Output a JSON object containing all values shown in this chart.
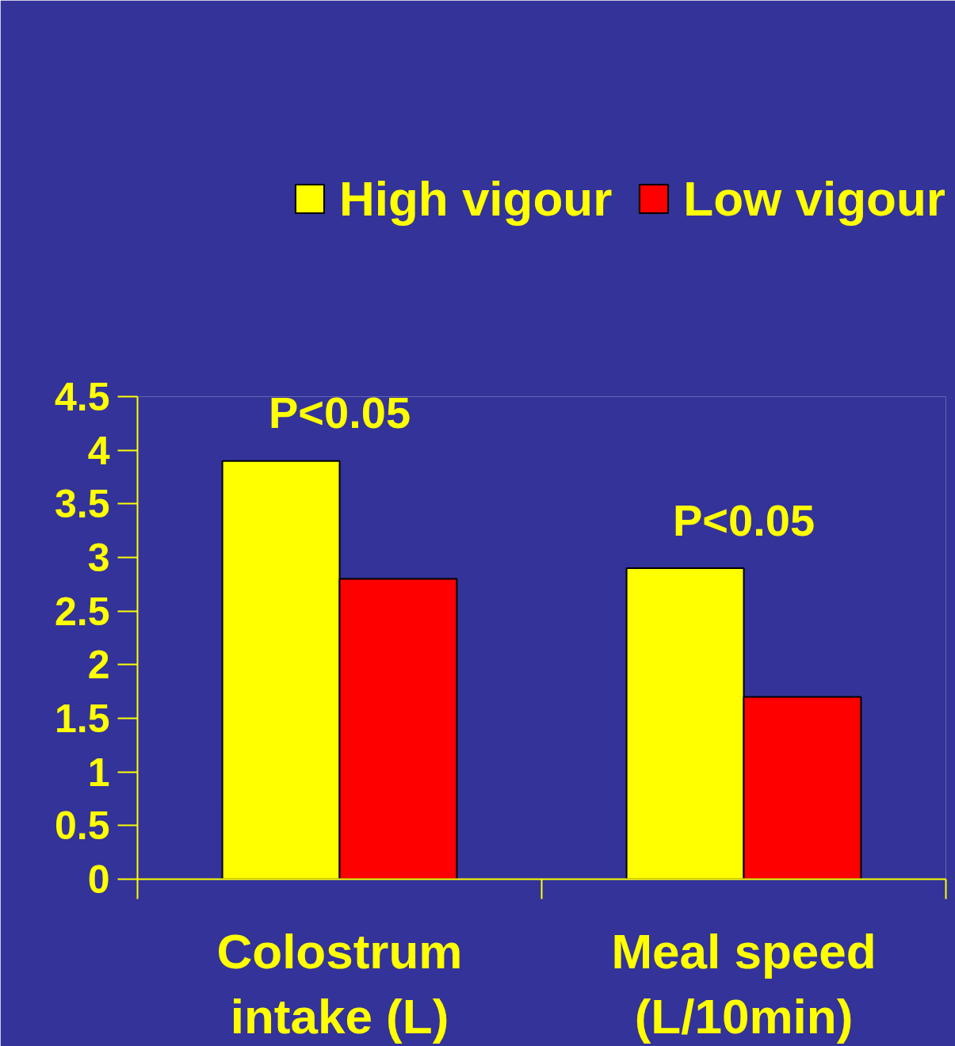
{
  "chart_data": {
    "type": "bar",
    "categories": [
      "Colostrum\nintake (L)",
      "Meal speed\n(L/10min)"
    ],
    "series": [
      {
        "name": "High vigour",
        "color": "#ffff00",
        "values": [
          3.9,
          2.9
        ]
      },
      {
        "name": "Low vigour",
        "color": "#ff0000",
        "values": [
          2.8,
          1.7
        ]
      }
    ],
    "ylim": [
      0,
      4.5
    ],
    "yticks": [
      0,
      0.5,
      1,
      1.5,
      2,
      2.5,
      3,
      3.5,
      4,
      4.5
    ],
    "grid": false,
    "legend": "top right",
    "annotations": [
      "P<0.05",
      "P<0.05"
    ]
  }
}
